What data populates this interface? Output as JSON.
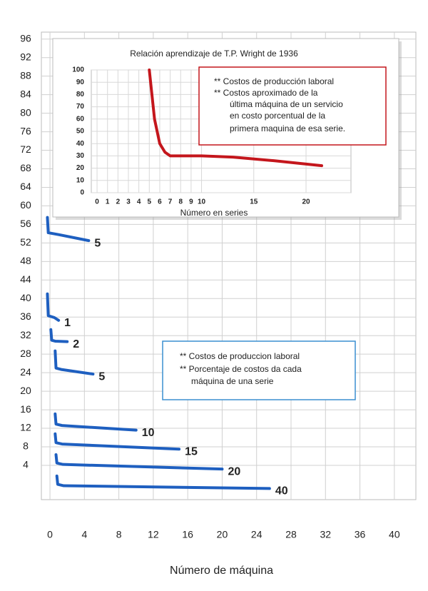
{
  "chart_data": [
    {
      "type": "line",
      "x_label": "Número de máquina",
      "xlim": [
        -1,
        42.5
      ],
      "ylim": [
        -3.4,
        97.5
      ],
      "xticks": [
        0,
        4,
        8,
        12,
        16,
        20,
        24,
        28,
        32,
        36,
        40
      ],
      "yticks": [
        96,
        92,
        88,
        84,
        80,
        76,
        72,
        68,
        64,
        60,
        56,
        52,
        48,
        44,
        40,
        36,
        32,
        28,
        24,
        20,
        16,
        12,
        8,
        4
      ],
      "grid": true,
      "series": [
        {
          "name": "5",
          "color": "#1e5fc0",
          "x": [
            -0.3,
            -0.2,
            1,
            4.5
          ],
          "values": [
            57.5,
            54.2,
            53.8,
            52.5
          ]
        },
        {
          "name": "1",
          "color": "#1e5fc0",
          "x": [
            -0.3,
            -0.2,
            0.5,
            1
          ],
          "values": [
            41,
            36.3,
            35.9,
            35.3
          ]
        },
        {
          "name": "2",
          "color": "#1e5fc0",
          "x": [
            0.1,
            0.2,
            0.6,
            2
          ],
          "values": [
            33.3,
            31,
            30.8,
            30.7
          ]
        },
        {
          "name": "5",
          "color": "#1e5fc0",
          "x": [
            0.6,
            0.7,
            1.3,
            5
          ],
          "values": [
            28.7,
            25,
            24.7,
            23.7
          ]
        },
        {
          "name": "10",
          "color": "#1e5fc0",
          "x": [
            0.6,
            0.7,
            1.4,
            10
          ],
          "values": [
            15.1,
            12.9,
            12.6,
            11.6
          ]
        },
        {
          "name": "15",
          "color": "#1e5fc0",
          "x": [
            0.6,
            0.7,
            1.4,
            15
          ],
          "values": [
            10.8,
            8.9,
            8.6,
            7.5
          ]
        },
        {
          "name": "20",
          "color": "#1e5fc0",
          "x": [
            0.7,
            0.8,
            1.5,
            20
          ],
          "values": [
            6.3,
            4.5,
            4.2,
            3.2
          ]
        },
        {
          "name": "40",
          "color": "#1e5fc0",
          "x": [
            0.8,
            0.9,
            1.6,
            25.5
          ],
          "values": [
            1.7,
            -0.1,
            -0.4,
            -1
          ]
        }
      ],
      "annotation": [
        "** Costos de produccion laboral",
        "** Porcentaje de costos da cada",
        "máquina de una serie"
      ]
    },
    {
      "type": "line",
      "title": "Relación aprendizaje de T.P. Wright de 1936",
      "x_label": "Número en series",
      "xlim": [
        -0.55,
        24.3
      ],
      "ylim": [
        0,
        100
      ],
      "xticks": [
        0,
        1,
        2,
        3,
        4,
        5,
        6,
        7,
        8,
        9,
        10,
        15,
        20
      ],
      "yticks": [
        0,
        10,
        20,
        30,
        40,
        50,
        60,
        70,
        80,
        90,
        100
      ],
      "grid": true,
      "series": [
        {
          "color": "#c4161c",
          "x": [
            5,
            5.5,
            6,
            6.5,
            7,
            10,
            13,
            17,
            21.5
          ],
          "values": [
            100,
            60,
            40,
            33,
            30,
            30,
            29,
            26,
            22
          ]
        }
      ],
      "annotation": [
        "**  Costos de producción laboral",
        "**  Costos aproximado de la",
        "última máquina de un servicio",
        "en costo porcentual de la",
        "primera maquina de esa serie."
      ]
    }
  ]
}
